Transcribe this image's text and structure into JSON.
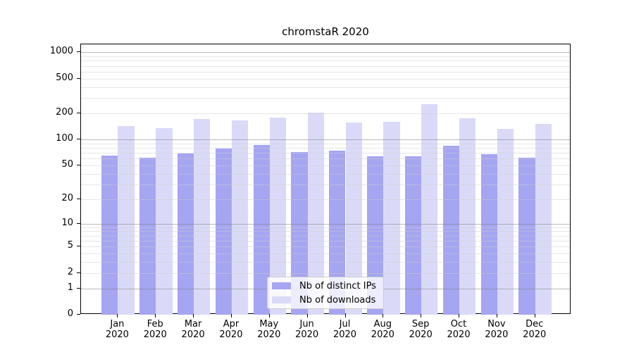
{
  "chart_data": {
    "type": "bar",
    "title": "chromstaR 2020",
    "categories": [
      "Jan",
      "Feb",
      "Mar",
      "Apr",
      "May",
      "Jun",
      "Jul",
      "Aug",
      "Sep",
      "Oct",
      "Nov",
      "Dec"
    ],
    "category_year": "2020",
    "series": [
      {
        "name": "Nb of distinct IPs",
        "color": "#a5a5f2",
        "values": [
          65,
          62,
          69,
          78,
          86,
          72,
          74,
          64,
          64,
          84,
          68,
          62
        ]
      },
      {
        "name": "Nb of downloads",
        "color": "#dadaf8",
        "values": [
          142,
          134,
          173,
          166,
          178,
          202,
          157,
          160,
          256,
          174,
          133,
          151
        ]
      }
    ],
    "xlabel": "",
    "ylabel": "",
    "y_axis": {
      "scale": "log1p",
      "tick_values": [
        0,
        1,
        2,
        5,
        10,
        20,
        50,
        100,
        200,
        500,
        1000
      ],
      "major_gridlines": [
        1,
        10,
        100,
        1000
      ],
      "minor_gridlines": [
        2,
        3,
        4,
        5,
        6,
        7,
        8,
        9,
        20,
        30,
        40,
        50,
        60,
        70,
        80,
        90,
        200,
        300,
        400,
        500,
        600,
        700,
        800,
        900
      ],
      "ylim": [
        0,
        1235
      ]
    },
    "grid": true,
    "legend_position": "lower center"
  },
  "colors": {
    "background": "#ffffff",
    "axis": "#000000",
    "major_grid": "#ababab",
    "minor_grid": "#e9e9e9",
    "legend_border": "#cccccc"
  }
}
